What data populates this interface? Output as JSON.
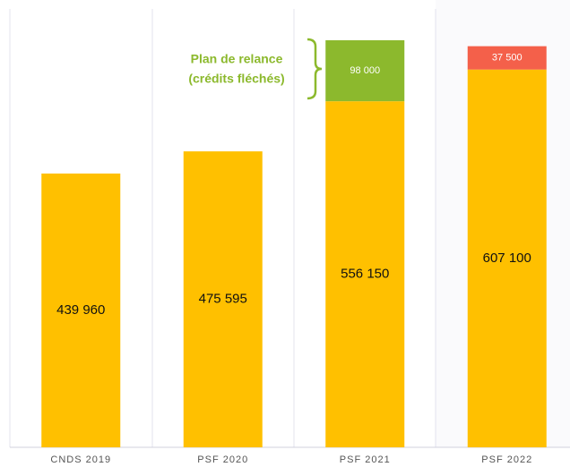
{
  "chart_data": {
    "type": "stacked_bar",
    "categories": [
      "CNDS 2019",
      "PSF 2020",
      "PSF 2021",
      "PSF 2022"
    ],
    "series": [
      {
        "color": "#ffc000",
        "values": [
          439960,
          475595,
          556150,
          607100
        ],
        "value_labels": [
          "439 960",
          "475 595",
          "556 150",
          "607 100"
        ]
      },
      {
        "color": "#8cb92d",
        "values": [
          null,
          null,
          98000,
          null
        ],
        "value_labels": [
          null,
          null,
          "98 000",
          null
        ]
      },
      {
        "color": "#f4604a",
        "values": [
          null,
          null,
          null,
          37500
        ],
        "value_labels": [
          null,
          null,
          null,
          "37 500"
        ]
      }
    ],
    "annotation": [
      "Plan de relance",
      "(crédits fléchés)"
    ]
  }
}
